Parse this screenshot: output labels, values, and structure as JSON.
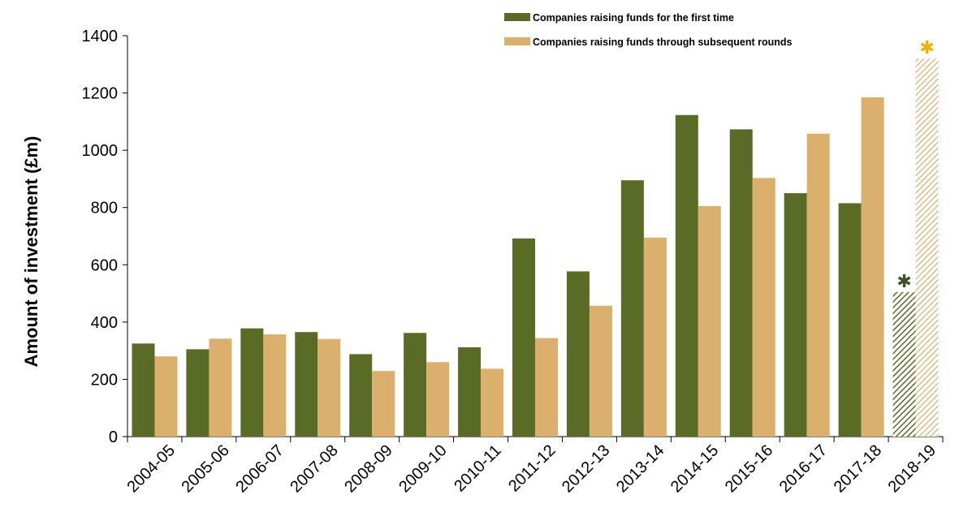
{
  "chart_data": {
    "type": "bar",
    "title": "",
    "xlabel": "",
    "ylabel": "Amount of investment (£m)",
    "ylim": [
      0,
      1400
    ],
    "yticks": [
      0,
      200,
      400,
      600,
      800,
      1000,
      1200,
      1400
    ],
    "categories": [
      "2004-05",
      "2005-06",
      "2006-07",
      "2007-08",
      "2008-09",
      "2009-10",
      "2010-11",
      "2011-12",
      "2012-13",
      "2013-14",
      "2014-15",
      "2015-16",
      "2016-17",
      "2017-18",
      "2018-19"
    ],
    "series": [
      {
        "name": "Companies raising funds for the first time",
        "color": "#596b24",
        "values": [
          325,
          305,
          378,
          365,
          288,
          362,
          312,
          692,
          577,
          895,
          1123,
          1073,
          850,
          815,
          505
        ]
      },
      {
        "name": "Companies raising funds through subsequent rounds",
        "color": "#dbb06d",
        "values": [
          280,
          342,
          357,
          341,
          229,
          260,
          237,
          344,
          457,
          695,
          805,
          903,
          1058,
          1185,
          1320
        ]
      }
    ],
    "hatched_category": "2018-19",
    "marker_symbol": "✱",
    "marker_colors": [
      "#3d5226",
      "#f2b300"
    ],
    "legend_position": "top-right",
    "grid": false
  }
}
